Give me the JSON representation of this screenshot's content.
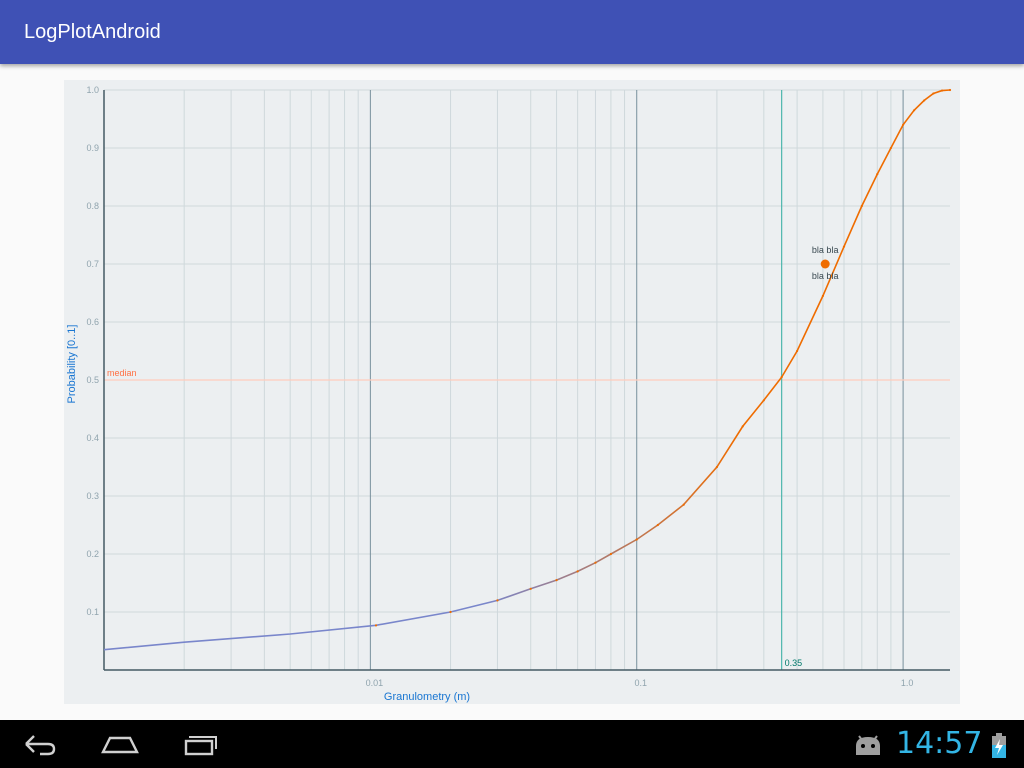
{
  "app": {
    "title": "LogPlotAndroid"
  },
  "colors": {
    "app_bar": "#3f51b5",
    "plot_background": "#eceff1",
    "grid_minor": "#cfd8dc",
    "grid_decade": "#78909c",
    "curve_low": "#7986cb",
    "curve_high": "#ef6c00",
    "median_line": "#ffccbc",
    "median_label": "#ff7043",
    "marker_line": "#4db6ac",
    "axis_title": "#1976d2",
    "clock": "#33b5e5"
  },
  "chart_data": {
    "type": "line",
    "title": "",
    "xlabel": "Granulometry (m)",
    "ylabel": "Probability [0..1]",
    "x_scale": "log",
    "xlim": [
      0.001,
      1.5
    ],
    "ylim": [
      0,
      1
    ],
    "x_ticks": [
      {
        "value": 0.01,
        "label": "0.01"
      },
      {
        "value": 0.1,
        "label": "0.1"
      },
      {
        "value": 1.0,
        "label": "1.0"
      }
    ],
    "y_ticks": [
      {
        "value": 0.1,
        "label": "0.1"
      },
      {
        "value": 0.2,
        "label": "0.2"
      },
      {
        "value": 0.3,
        "label": "0.3"
      },
      {
        "value": 0.4,
        "label": "0.4"
      },
      {
        "value": 0.5,
        "label": "0.5"
      },
      {
        "value": 0.6,
        "label": "0.6"
      },
      {
        "value": 0.7,
        "label": "0.7"
      },
      {
        "value": 0.8,
        "label": "0.8"
      },
      {
        "value": 0.9,
        "label": "0.9"
      },
      {
        "value": 1.0,
        "label": "1.0"
      }
    ],
    "grid": true,
    "series": [
      {
        "x": [
          0.001,
          0.002,
          0.005,
          0.0105,
          0.02,
          0.03,
          0.04,
          0.05,
          0.06,
          0.07,
          0.08,
          0.1,
          0.12,
          0.15,
          0.2,
          0.25,
          0.3,
          0.35,
          0.4,
          0.5,
          0.6,
          0.7,
          0.8,
          0.9,
          1.0,
          1.1,
          1.2,
          1.3,
          1.4,
          1.5
        ],
        "y": [
          0.035,
          0.048,
          0.062,
          0.077,
          0.1,
          0.12,
          0.14,
          0.155,
          0.17,
          0.185,
          0.2,
          0.225,
          0.25,
          0.285,
          0.35,
          0.42,
          0.465,
          0.505,
          0.55,
          0.645,
          0.73,
          0.8,
          0.855,
          0.9,
          0.94,
          0.965,
          0.982,
          0.994,
          0.999,
          1.0
        ]
      }
    ],
    "reference_lines": [
      {
        "axis": "y",
        "value": 0.5,
        "label": "median"
      },
      {
        "axis": "x",
        "value": 0.35,
        "label": "0.35"
      }
    ],
    "annotations": [
      {
        "x": 0.51,
        "y": 0.7,
        "label_above": "bla bla",
        "label_below": "bla bla"
      }
    ]
  },
  "navbar": {
    "back_icon": "back-arrow-icon",
    "home_icon": "home-icon",
    "recents_icon": "recent-apps-icon"
  },
  "status": {
    "clock": "14:57",
    "debug_icon": "android-debug-icon",
    "battery_icon": "battery-charging-icon"
  }
}
